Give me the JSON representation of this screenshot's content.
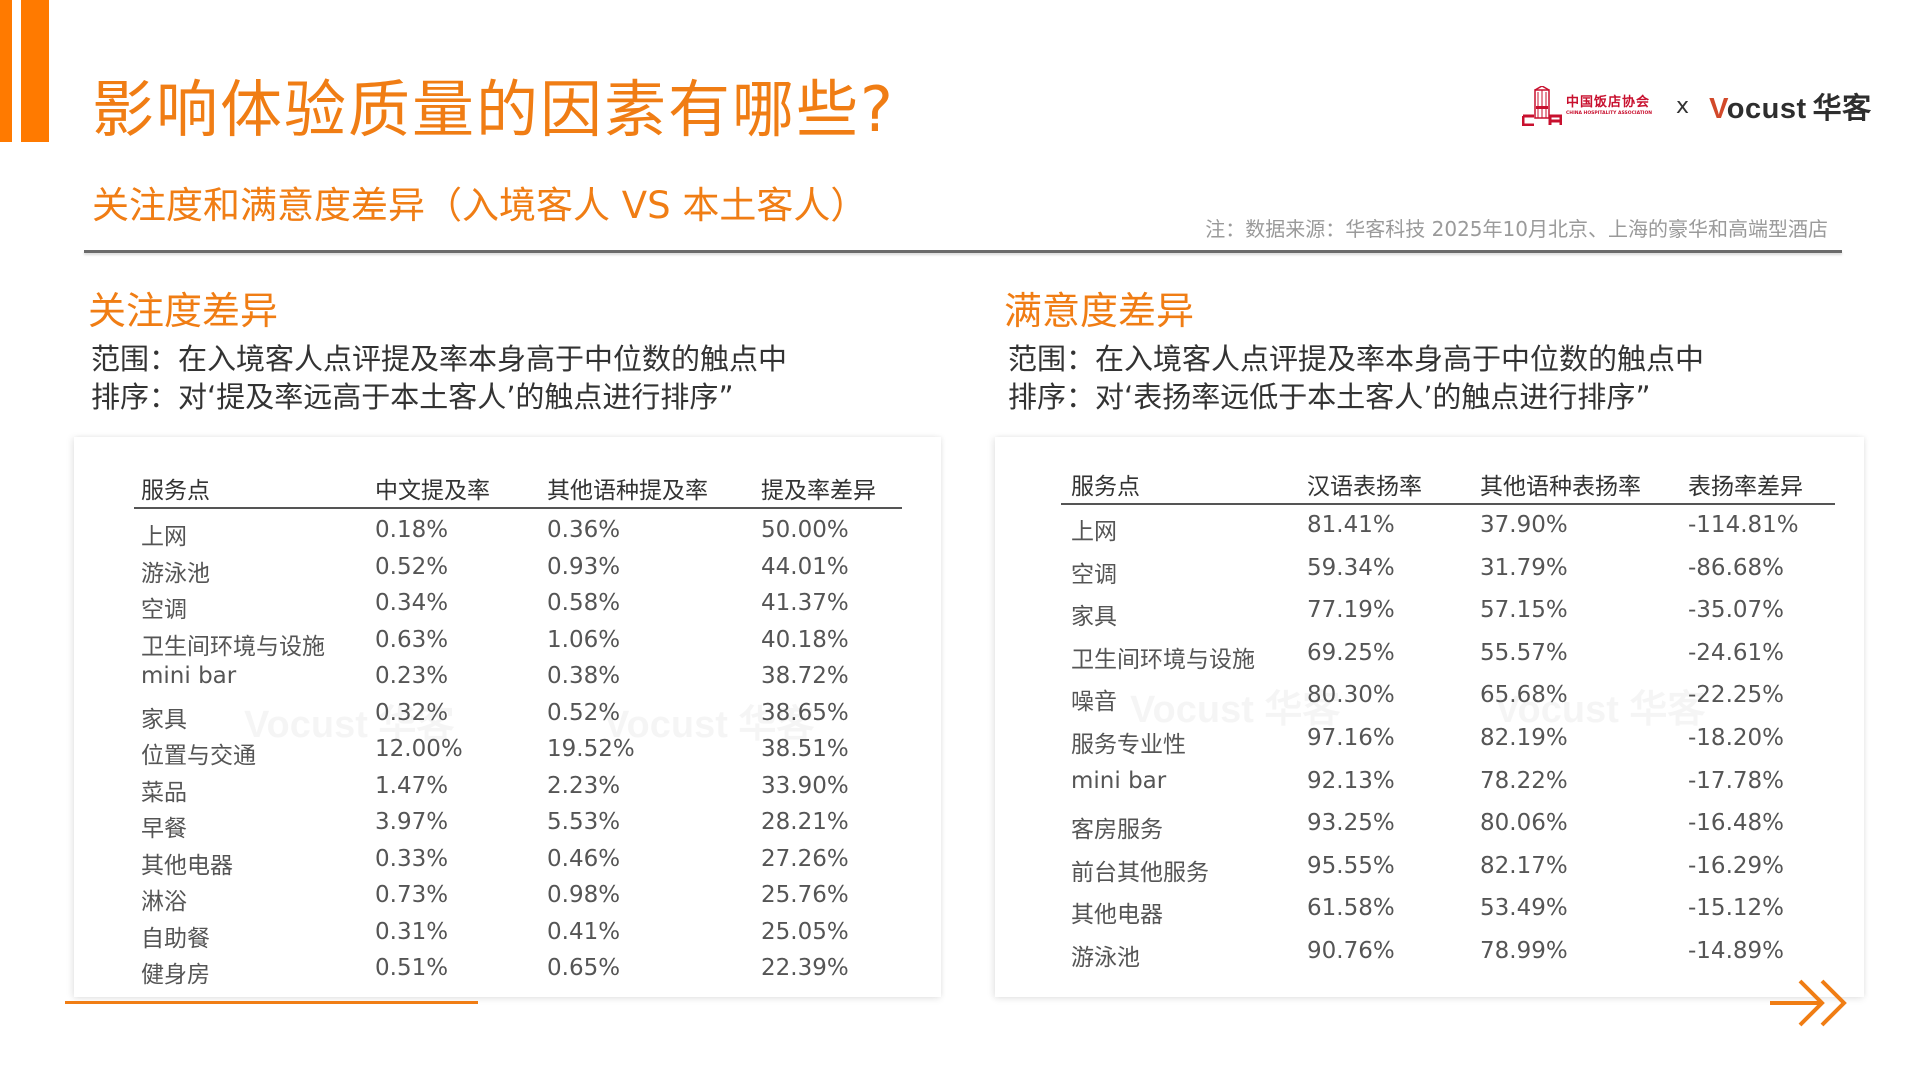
{
  "header": {
    "title": "影响体验质量的因素有哪些?",
    "subtitle": "关注度和满意度差异（入境客人 VS 本土客人）",
    "note": "注：数据来源：华客科技  2025年10月北京、上海的豪华和高端型酒店",
    "logos": {
      "cha_cn": "中国饭店协会",
      "cha_en": "CHINA HOSPITALITY ASSOCIATION",
      "separator": "x",
      "vocust_v": "V",
      "vocust_rest": "ocust",
      "vocust_cn": "华客"
    }
  },
  "colors": {
    "accent": "#f07d14",
    "bar": "#ff7a00",
    "cha_red": "#c8102e",
    "vocust_v": "#d2492a"
  },
  "attention": {
    "title": "关注度差异",
    "scope": "范围：在入境客人点评提及率本身高于中位数的触点中",
    "sort": "排序：对‘提及率远高于本土客人’的触点进行排序”",
    "watermark": "Vocust 华客",
    "columns": [
      "服务点",
      "中文提及率",
      "其他语种提及率",
      "提及率差异"
    ],
    "rows": [
      [
        "上网",
        "0.18%",
        "0.36%",
        "50.00%"
      ],
      [
        "游泳池",
        "0.52%",
        "0.93%",
        "44.01%"
      ],
      [
        "空调",
        "0.34%",
        "0.58%",
        "41.37%"
      ],
      [
        "卫生间环境与设施",
        "0.63%",
        "1.06%",
        "40.18%"
      ],
      [
        "mini bar",
        "0.23%",
        "0.38%",
        "38.72%"
      ],
      [
        "家具",
        "0.32%",
        "0.52%",
        "38.65%"
      ],
      [
        "位置与交通",
        "12.00%",
        "19.52%",
        "38.51%"
      ],
      [
        "菜品",
        "1.47%",
        "2.23%",
        "33.90%"
      ],
      [
        "早餐",
        "3.97%",
        "5.53%",
        "28.21%"
      ],
      [
        "其他电器",
        "0.33%",
        "0.46%",
        "27.26%"
      ],
      [
        "淋浴",
        "0.73%",
        "0.98%",
        "25.76%"
      ],
      [
        "自助餐",
        "0.31%",
        "0.41%",
        "25.05%"
      ],
      [
        "健身房",
        "0.51%",
        "0.65%",
        "22.39%"
      ]
    ]
  },
  "satisfaction": {
    "title": "满意度差异",
    "scope": "范围：在入境客人点评提及率本身高于中位数的触点中",
    "sort": "排序：对‘表扬率远低于本土客人’的触点进行排序”",
    "watermark": "Vocust 华客",
    "columns": [
      "服务点",
      "汉语表扬率",
      "其他语种表扬率",
      "表扬率差异"
    ],
    "rows": [
      [
        "上网",
        "81.41%",
        "37.90%",
        "-114.81%"
      ],
      [
        "空调",
        "59.34%",
        "31.79%",
        "-86.68%"
      ],
      [
        "家具",
        "77.19%",
        "57.15%",
        "-35.07%"
      ],
      [
        "卫生间环境与设施",
        "69.25%",
        "55.57%",
        "-24.61%"
      ],
      [
        "噪音",
        "80.30%",
        "65.68%",
        "-22.25%"
      ],
      [
        "服务专业性",
        "97.16%",
        "82.19%",
        "-18.20%"
      ],
      [
        "mini bar",
        "92.13%",
        "78.22%",
        "-17.78%"
      ],
      [
        "客房服务",
        "93.25%",
        "80.06%",
        "-16.48%"
      ],
      [
        "前台其他服务",
        "95.55%",
        "82.17%",
        "-16.29%"
      ],
      [
        "其他电器",
        "61.58%",
        "53.49%",
        "-15.12%"
      ],
      [
        "游泳池",
        "90.76%",
        "78.99%",
        "-14.89%"
      ]
    ]
  },
  "footer": {
    "next_icon": "double-chevron-right-arrow"
  }
}
